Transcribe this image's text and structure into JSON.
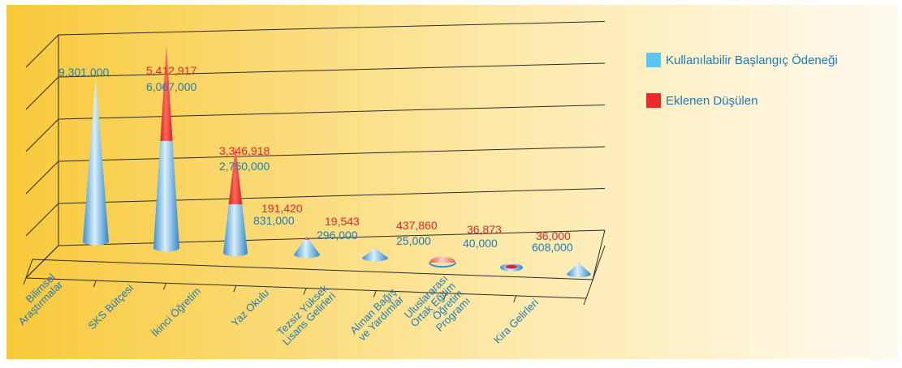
{
  "chart_data": {
    "type": "bar",
    "stacked": true,
    "mark_shape": "cone",
    "categories": [
      [
        "Bilimsel",
        "Araştırmalar"
      ],
      [
        "SKS Bütçesi"
      ],
      [
        "İkinci Öğretim"
      ],
      [
        "Yaz Okulu"
      ],
      [
        "Tezsiz Yüksek",
        "Lisans Gelirleri"
      ],
      [
        "Alınan Bağış",
        "ve Yardımlar"
      ],
      [
        "Uluslararası",
        "Ortak Eğitim",
        "Öğretim",
        "Programı"
      ],
      [
        "Kira Gelirleri"
      ]
    ],
    "series": [
      {
        "name": "Kullanılabilir Başlangıç Ödeneği",
        "color": "#5bc6ef",
        "values": [
          9301000,
          6067000,
          2750000,
          831000,
          296000,
          25000,
          40000,
          608000
        ],
        "labels": [
          "9,301,000",
          "6,067,000",
          "2,750,000",
          "831,000",
          "296,000",
          "25,000",
          "40,000",
          "608,000"
        ]
      },
      {
        "name": "Eklenen Düşülen",
        "color": "#ee2a2a",
        "values": [
          0,
          5412917,
          3346918,
          191420,
          19543,
          437860,
          36873,
          36000
        ],
        "labels": [
          "",
          "5,412,917",
          "3,346,918",
          "191,420",
          "19,543",
          "437,860",
          "36,873",
          "36,000"
        ]
      }
    ],
    "legend_position": "right",
    "grid": true,
    "title": "",
    "xlabel": "",
    "ylabel": ""
  }
}
